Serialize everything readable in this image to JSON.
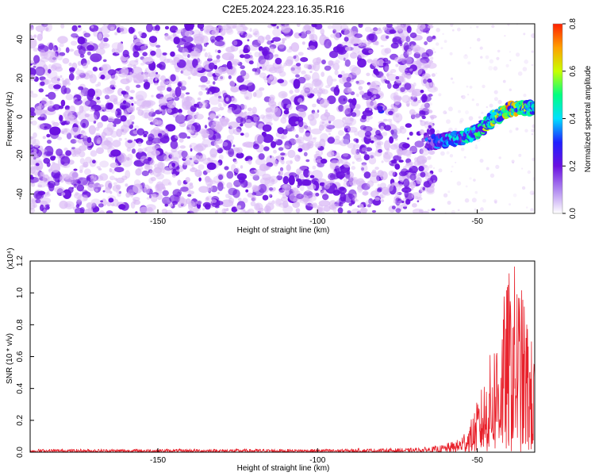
{
  "title": "C2E5.2024.223.16.35.R16",
  "colors": {
    "spectrogram_background": "#ffffff",
    "noise_light": "#d9b8f5",
    "noise_dark": "#6a10e0",
    "snr_line": "#e8202a"
  },
  "chart_data": [
    {
      "type": "heatmap",
      "title": "C2E5.2024.223.16.35.R16",
      "xlabel": "Height of straight line (km)",
      "ylabel": "Frequency (Hz)",
      "xlim": [
        -190,
        -32
      ],
      "ylim": [
        -50,
        48
      ],
      "x_ticks": [
        -150,
        -100,
        -50
      ],
      "x_tick_labels": [
        "-150",
        "-100",
        "-50"
      ],
      "y_ticks": [
        -40,
        -20,
        0,
        20,
        40
      ],
      "y_tick_labels": [
        "-40",
        "-20",
        "0",
        "20",
        "40"
      ],
      "colorbar": {
        "label": "Normalized spectral amplitude",
        "range": [
          0,
          0.8
        ],
        "ticks": [
          0.0,
          0.2,
          0.4,
          0.6,
          0.8
        ],
        "tick_labels": [
          "0.0",
          "0.2",
          "0.4",
          "0.6",
          "0.8"
        ],
        "colormap": [
          "#ffffff",
          "#b088f0",
          "#6a10e0",
          "#2020ff",
          "#00e0ff",
          "#00ff80",
          "#c8ff00",
          "#ffa000",
          "#ff2000"
        ]
      },
      "noise_region": {
        "x_range": [
          -190,
          -66
        ],
        "freq_range": [
          -50,
          48
        ],
        "amplitude": 0.05
      },
      "signal_track": [
        {
          "x": -65,
          "freq": -14,
          "amplitude": 0.3
        },
        {
          "x": -60,
          "freq": -12,
          "amplitude": 0.35
        },
        {
          "x": -55,
          "freq": -11,
          "amplitude": 0.4
        },
        {
          "x": -50,
          "freq": -8,
          "amplitude": 0.45
        },
        {
          "x": -45,
          "freq": -1,
          "amplitude": 0.55
        },
        {
          "x": -40,
          "freq": 4,
          "amplitude": 0.65
        },
        {
          "x": -35,
          "freq": 5,
          "amplitude": 0.55
        },
        {
          "x": -32,
          "freq": 4,
          "amplitude": 0.4
        }
      ],
      "isolated_features": [
        {
          "x": -80,
          "freq": 4,
          "amplitude": 0.35
        },
        {
          "x": -91,
          "freq": -12,
          "amplitude": 0.15
        },
        {
          "x": -76,
          "freq": -9,
          "amplitude": 0.15
        }
      ]
    },
    {
      "type": "line",
      "xlabel": "Height of straight line (km)",
      "ylabel": "SNR (10 * v/v)",
      "y_multiplier_label": "(x10⁴)",
      "xlim": [
        -190,
        -32
      ],
      "ylim": [
        0,
        1.2
      ],
      "x_ticks": [
        -150,
        -100,
        -50
      ],
      "x_tick_labels": [
        "-150",
        "-100",
        "-50"
      ],
      "y_ticks": [
        0.0,
        0.2,
        0.4,
        0.6,
        0.8,
        1.0,
        1.2
      ],
      "y_tick_labels": [
        "0.0",
        "0.2",
        "0.4",
        "0.6",
        "0.8",
        "1.0",
        "1.2"
      ],
      "series": [
        {
          "color": "#e8202a",
          "envelope": [
            {
              "x": -190,
              "y": 0.02
            },
            {
              "x": -150,
              "y": 0.02
            },
            {
              "x": -100,
              "y": 0.02
            },
            {
              "x": -70,
              "y": 0.025
            },
            {
              "x": -62,
              "y": 0.04
            },
            {
              "x": -56,
              "y": 0.08
            },
            {
              "x": -52,
              "y": 0.2
            },
            {
              "x": -48,
              "y": 0.45
            },
            {
              "x": -45,
              "y": 0.7
            },
            {
              "x": -42,
              "y": 0.95
            },
            {
              "x": -40,
              "y": 1.15
            },
            {
              "x": -38,
              "y": 1.2
            },
            {
              "x": -35,
              "y": 0.95
            },
            {
              "x": -32,
              "y": 0.6
            }
          ]
        }
      ]
    }
  ]
}
